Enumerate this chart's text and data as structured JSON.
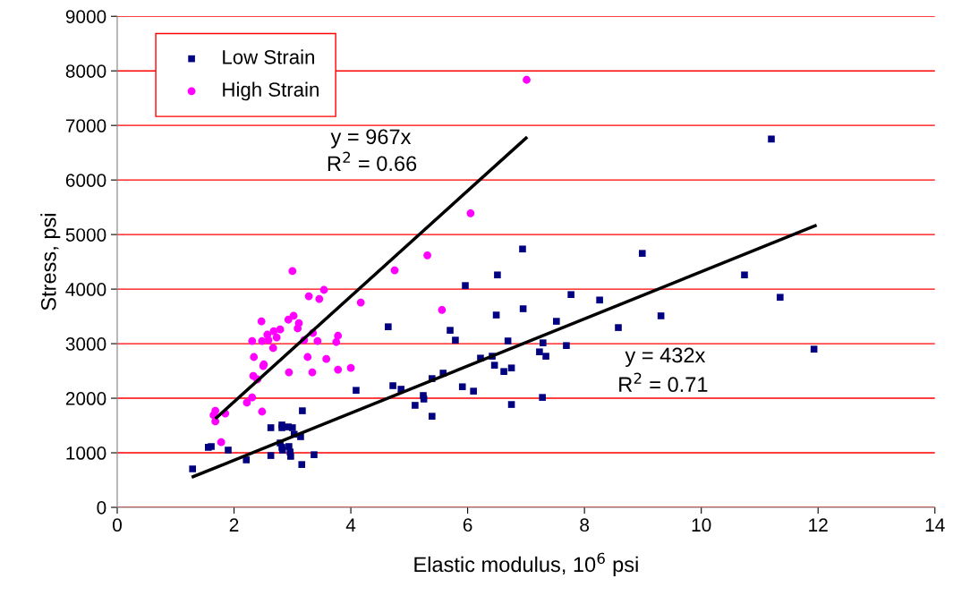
{
  "chart_data": {
    "type": "scatter",
    "xlabel": "Elastic modulus, 10$^{6}$ psi",
    "ylabel": "Stress, psi",
    "xlim": [
      0,
      14
    ],
    "xticks": [
      0,
      2,
      4,
      6,
      8,
      10,
      12,
      14
    ],
    "ylim": [
      0,
      9000
    ],
    "yticks": [
      0,
      1000,
      2000,
      3000,
      4000,
      5000,
      6000,
      7000,
      8000,
      9000
    ],
    "grid": "y",
    "legend": "top left",
    "annotations": [
      "y = 967x",
      "R$^{2}$ = 0.66",
      "y = 432x",
      "R$^{2}$ = 0.71"
    ],
    "series": [
      {
        "name": "Low Strain",
        "color": "#000080",
        "marker": "square",
        "x": [
          1.29,
          1.56,
          1.61,
          1.9,
          2.21,
          2.63,
          2.63,
          2.82,
          2.82,
          2.93,
          3.0,
          3.03,
          3.14,
          2.79,
          2.82,
          2.94,
          2.83,
          2.96,
          2.97,
          3.16,
          3.37,
          3.17,
          4.09,
          4.64,
          4.72,
          4.86,
          5.1,
          5.24,
          5.25,
          5.39,
          5.39,
          5.58,
          5.7,
          5.79,
          5.91,
          5.96,
          6.1,
          6.22,
          6.42,
          6.46,
          6.49,
          6.51,
          6.62,
          6.69,
          6.75,
          6.75,
          6.94,
          6.95,
          7.23,
          7.28,
          7.29,
          7.34,
          7.52,
          7.69,
          7.77,
          8.26,
          8.58,
          8.99,
          9.31,
          10.74,
          11.2,
          11.35,
          11.93
        ],
        "values": [
          705,
          1100,
          1115,
          1050,
          870,
          1460,
          950,
          1510,
          1460,
          1475,
          1460,
          1340,
          1295,
          1180,
          1100,
          1115,
          1050,
          1015,
          935,
          785,
          965,
          1770,
          2145,
          3310,
          2230,
          2165,
          1870,
          2050,
          1985,
          1670,
          2360,
          2460,
          3245,
          3065,
          2210,
          4065,
          2130,
          2735,
          2770,
          2605,
          3525,
          4260,
          2490,
          3050,
          2555,
          1885,
          4735,
          3640,
          2850,
          2015,
          3015,
          2770,
          3410,
          2965,
          3900,
          3800,
          3295,
          4655,
          3510,
          4260,
          6750,
          3850,
          2900
        ]
      },
      {
        "name": "High Strain",
        "color": "#ff00ff",
        "marker": "circle",
        "x": [
          3.0,
          4.75,
          3.54,
          3.28,
          3.46,
          4.17,
          2.47,
          3.02,
          2.93,
          3.11,
          3.09,
          2.79,
          2.68,
          2.57,
          2.73,
          3.35,
          3.78,
          2.31,
          2.48,
          2.59,
          3.2,
          3.43,
          3.75,
          2.67,
          2.34,
          2.51,
          2.5,
          3.26,
          3.58,
          2.94,
          3.34,
          3.78,
          4.0,
          2.33,
          2.4,
          2.31,
          2.22,
          2.48,
          1.68,
          1.65,
          1.68,
          1.85,
          1.78,
          5.31,
          5.56,
          6.05,
          7.01
        ],
        "values": [
          4330,
          4345,
          3985,
          3870,
          3820,
          3755,
          3410,
          3510,
          3440,
          3375,
          3280,
          3260,
          3230,
          3165,
          3115,
          3195,
          3145,
          3050,
          3050,
          3065,
          3065,
          3050,
          3030,
          2920,
          2755,
          2620,
          2590,
          2755,
          2720,
          2475,
          2475,
          2525,
          2555,
          2410,
          2345,
          2015,
          1920,
          1755,
          1770,
          1690,
          1575,
          1720,
          1195,
          4620,
          3620,
          5390,
          7835
        ]
      },
      {
        "type": "line",
        "color": "#000000",
        "marker": "none",
        "line_style": "solid",
        "x": [
          1.7,
          7.0
        ],
        "values": [
          1644,
          6769
        ]
      },
      {
        "type": "line",
        "color": "#000000",
        "marker": "none",
        "line_style": "solid",
        "x": [
          1.3,
          11.95
        ],
        "values": [
          562,
          5162
        ]
      }
    ]
  }
}
